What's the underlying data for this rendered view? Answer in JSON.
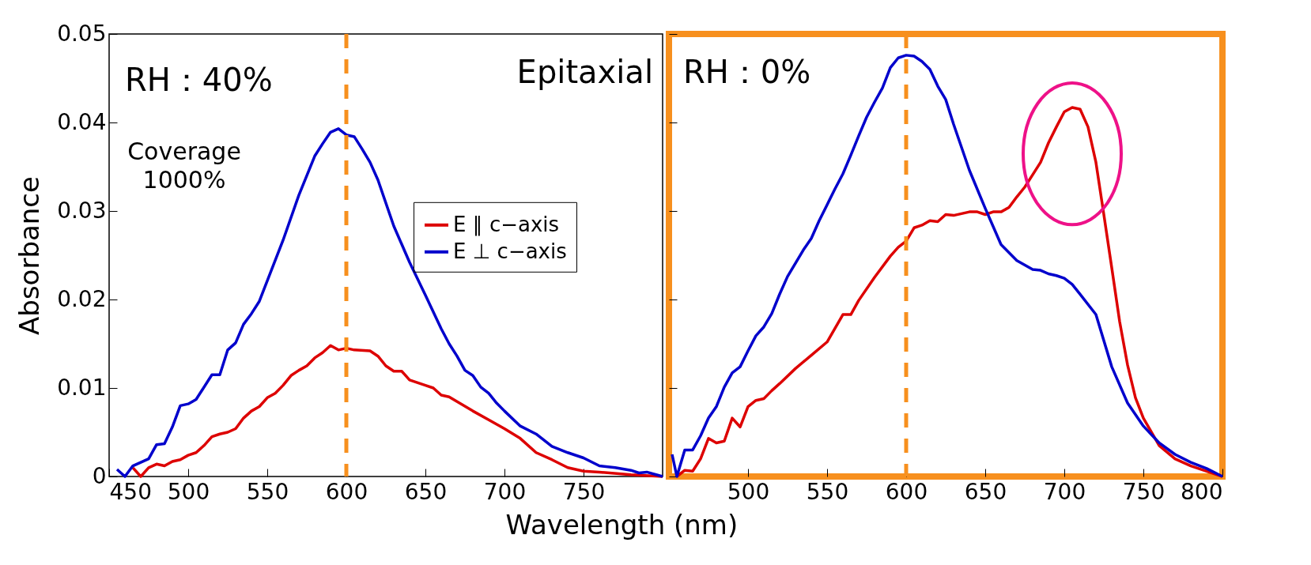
{
  "chart_data": [
    {
      "type": "line",
      "ylabel": "Absorbance",
      "xlabel": "Wavelength (nm)",
      "xlim": [
        450,
        800
      ],
      "xticks": [
        450,
        500,
        550,
        600,
        650,
        700,
        750
      ],
      "ylim": [
        0,
        0.05
      ],
      "yticks": [
        0,
        0.01,
        0.02,
        0.03,
        0.04,
        0.05
      ],
      "legend": "right",
      "grid": false,
      "annotations": [
        "RH：40%",
        "Coverage 1000%",
        "Epitaxial"
      ],
      "ref_lines": [
        {
          "axis": "x",
          "value": 600,
          "color": "#f7901e",
          "line_style": "dashed"
        }
      ],
      "series": [
        {
          "name": "E ∥ c−axis",
          "color": "#dd0000",
          "x": [
            465,
            470,
            475,
            480,
            485,
            490,
            495,
            500,
            505,
            510,
            515,
            520,
            525,
            530,
            535,
            540,
            545,
            550,
            555,
            560,
            565,
            570,
            575,
            580,
            585,
            590,
            595,
            600,
            605,
            615,
            620,
            625,
            630,
            635,
            640,
            650,
            655,
            660,
            665,
            680,
            690,
            700,
            710,
            720,
            730,
            740,
            750,
            760,
            780,
            800
          ],
          "values": [
            0.001,
            0,
            0.001,
            0.0014,
            0.0012,
            0.0017,
            0.0019,
            0.0024,
            0.0027,
            0.0035,
            0.0045,
            0.0048,
            0.005,
            0.0054,
            0.0066,
            0.0074,
            0.0079,
            0.0089,
            0.0094,
            0.0103,
            0.0114,
            0.012,
            0.0125,
            0.0134,
            0.014,
            0.0148,
            0.0143,
            0.0145,
            0.0143,
            0.0142,
            0.0136,
            0.0125,
            0.0119,
            0.0119,
            0.0109,
            0.0103,
            0.01,
            0.0092,
            0.009,
            0.0074,
            0.0064,
            0.0054,
            0.0043,
            0.0027,
            0.0019,
            0.001,
            0.0006,
            0.0005,
            0.0002,
            0
          ]
        },
        {
          "name": "E ⊥ c−axis",
          "color": "#0000cc",
          "x": [
            455,
            460,
            465,
            475,
            480,
            485,
            490,
            495,
            500,
            505,
            515,
            520,
            525,
            530,
            535,
            540,
            545,
            550,
            560,
            570,
            580,
            585,
            590,
            595,
            600,
            605,
            610,
            615,
            620,
            630,
            640,
            650,
            660,
            665,
            670,
            675,
            680,
            685,
            690,
            695,
            700,
            710,
            720,
            730,
            740,
            750,
            760,
            770,
            780,
            785,
            790,
            800
          ],
          "values": [
            0.0008,
            0,
            0.0012,
            0.002,
            0.0036,
            0.0037,
            0.0056,
            0.008,
            0.0082,
            0.0087,
            0.0115,
            0.0115,
            0.0143,
            0.0151,
            0.0172,
            0.0184,
            0.0198,
            0.0221,
            0.0267,
            0.0318,
            0.0362,
            0.0376,
            0.0389,
            0.0393,
            0.0386,
            0.0384,
            0.037,
            0.0355,
            0.0335,
            0.0283,
            0.0242,
            0.0205,
            0.0167,
            0.015,
            0.0136,
            0.012,
            0.0114,
            0.0101,
            0.0094,
            0.0083,
            0.0074,
            0.0057,
            0.0048,
            0.0034,
            0.0027,
            0.0021,
            0.0012,
            0.001,
            0.0007,
            0.0004,
            0.0005,
            0
          ]
        }
      ]
    },
    {
      "type": "line",
      "xlim": [
        450,
        800
      ],
      "xticks": [
        500,
        550,
        600,
        650,
        700,
        750,
        800
      ],
      "ylim": [
        0,
        0.05
      ],
      "yticks": [
        0,
        0.01,
        0.02,
        0.03,
        0.04,
        0.05
      ],
      "tick_labels": "x",
      "grid": false,
      "annotations": [
        "RH：0%"
      ],
      "ref_lines": [
        {
          "axis": "x",
          "value": 600,
          "color": "#f7901e",
          "line_style": "dashed"
        }
      ],
      "series": [
        {
          "color": "#dd0000",
          "x": [
            455,
            460,
            465,
            470,
            475,
            480,
            485,
            490,
            495,
            500,
            505,
            510,
            515,
            520,
            530,
            540,
            550,
            560,
            565,
            570,
            580,
            590,
            595,
            600,
            605,
            610,
            615,
            620,
            625,
            630,
            635,
            640,
            645,
            650,
            655,
            660,
            665,
            670,
            675,
            680,
            685,
            690,
            695,
            700,
            705,
            710,
            715,
            720,
            725,
            730,
            735,
            740,
            745,
            750,
            760,
            770,
            780,
            790,
            800
          ],
          "values": [
            0,
            0.0007,
            0.0006,
            0.002,
            0.0043,
            0.0038,
            0.004,
            0.0066,
            0.0056,
            0.0079,
            0.0086,
            0.0088,
            0.0097,
            0.0105,
            0.0122,
            0.0137,
            0.0152,
            0.0183,
            0.0183,
            0.0199,
            0.0225,
            0.0249,
            0.0259,
            0.0266,
            0.0281,
            0.0284,
            0.0289,
            0.0288,
            0.0296,
            0.0295,
            0.0297,
            0.0299,
            0.0299,
            0.0296,
            0.0299,
            0.0299,
            0.0304,
            0.0316,
            0.0327,
            0.0341,
            0.0355,
            0.0377,
            0.0395,
            0.0412,
            0.0417,
            0.0415,
            0.0395,
            0.0355,
            0.0296,
            0.0236,
            0.0175,
            0.0126,
            0.0089,
            0.0066,
            0.0035,
            0.002,
            0.0012,
            0.0006,
            0
          ]
        },
        {
          "color": "#0000cc",
          "x": [
            452,
            455,
            460,
            465,
            470,
            475,
            480,
            485,
            490,
            495,
            500,
            505,
            510,
            515,
            520,
            525,
            530,
            535,
            540,
            545,
            550,
            555,
            560,
            565,
            570,
            575,
            580,
            585,
            590,
            595,
            600,
            605,
            610,
            615,
            620,
            625,
            630,
            640,
            650,
            660,
            670,
            680,
            685,
            690,
            695,
            700,
            705,
            710,
            720,
            730,
            740,
            750,
            760,
            770,
            780,
            790,
            800
          ],
          "values": [
            0.0025,
            0,
            0.003,
            0.003,
            0.0046,
            0.0066,
            0.0079,
            0.0101,
            0.0117,
            0.0124,
            0.0142,
            0.0159,
            0.0169,
            0.0184,
            0.0206,
            0.0226,
            0.0241,
            0.0256,
            0.0269,
            0.0289,
            0.0307,
            0.0325,
            0.0342,
            0.0363,
            0.0385,
            0.0406,
            0.0423,
            0.0439,
            0.0462,
            0.0473,
            0.0476,
            0.0475,
            0.0469,
            0.046,
            0.0441,
            0.0426,
            0.0398,
            0.0346,
            0.0303,
            0.0262,
            0.0244,
            0.0234,
            0.0233,
            0.0229,
            0.0227,
            0.0224,
            0.0217,
            0.0206,
            0.0183,
            0.0124,
            0.0083,
            0.0057,
            0.0038,
            0.0025,
            0.0016,
            0.0009,
            0
          ]
        }
      ]
    }
  ]
}
